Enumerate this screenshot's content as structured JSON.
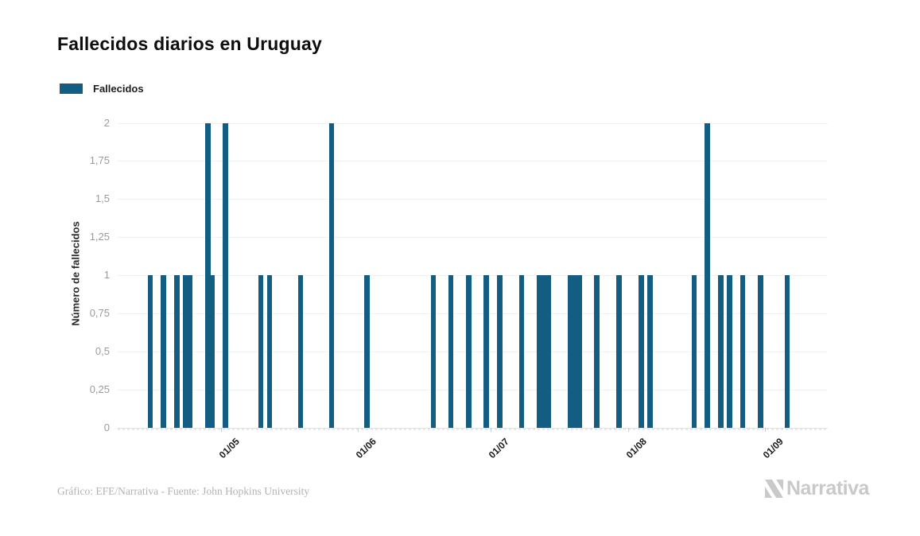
{
  "header": {
    "title": "Fallecidos diarios en Uruguay"
  },
  "legend": {
    "label": "Fallecidos"
  },
  "colors": {
    "bar": "#135c82",
    "grid": "#f1f1f1",
    "y_tick_label": "#9b9b9b",
    "x_tick_label": "#1a1a1a",
    "title": "#0e0e10",
    "credit": "#b3b3b3",
    "brand": "#c9c9c9"
  },
  "chart_data": {
    "type": "bar",
    "title": "Fallecidos diarios en Uruguay",
    "xlabel": "",
    "ylabel": "Número de fallecidos",
    "ylim": [
      0,
      2
    ],
    "grid": true,
    "legend_position": "top-left",
    "y_ticks": [
      "0",
      "0,25",
      "0,5",
      "0,75",
      "1",
      "1,25",
      "1,5",
      "1,75",
      "2"
    ],
    "x_ticks": [
      "01/05",
      "01/06",
      "01/07",
      "01/08",
      "01/09"
    ],
    "series": [
      {
        "name": "Fallecidos",
        "color": "#135c82",
        "points": [
          {
            "date": "15/04",
            "value": 1
          },
          {
            "date": "18/04",
            "value": 1
          },
          {
            "date": "21/04",
            "value": 1
          },
          {
            "date": "23/04",
            "value": 1
          },
          {
            "date": "24/04",
            "value": 1
          },
          {
            "date": "28/04",
            "value": 2
          },
          {
            "date": "29/04",
            "value": 1
          },
          {
            "date": "02/05",
            "value": 2
          },
          {
            "date": "10/05",
            "value": 1
          },
          {
            "date": "12/05",
            "value": 1
          },
          {
            "date": "19/05",
            "value": 1
          },
          {
            "date": "26/05",
            "value": 2
          },
          {
            "date": "03/06",
            "value": 1
          },
          {
            "date": "18/06",
            "value": 1
          },
          {
            "date": "22/06",
            "value": 1
          },
          {
            "date": "26/06",
            "value": 1
          },
          {
            "date": "30/06",
            "value": 1
          },
          {
            "date": "03/07",
            "value": 1
          },
          {
            "date": "08/07",
            "value": 1
          },
          {
            "date": "12/07",
            "value": 1
          },
          {
            "date": "13/07",
            "value": 1
          },
          {
            "date": "14/07",
            "value": 1
          },
          {
            "date": "19/07",
            "value": 1
          },
          {
            "date": "20/07",
            "value": 1
          },
          {
            "date": "21/07",
            "value": 1
          },
          {
            "date": "25/07",
            "value": 1
          },
          {
            "date": "30/07",
            "value": 1
          },
          {
            "date": "04/08",
            "value": 1
          },
          {
            "date": "06/08",
            "value": 1
          },
          {
            "date": "16/08",
            "value": 1
          },
          {
            "date": "19/08",
            "value": 2
          },
          {
            "date": "22/08",
            "value": 1
          },
          {
            "date": "24/08",
            "value": 1
          },
          {
            "date": "27/08",
            "value": 1
          },
          {
            "date": "31/08",
            "value": 1
          },
          {
            "date": "06/09",
            "value": 1
          }
        ]
      }
    ]
  },
  "footer": {
    "credit": "Gráfico: EFE/Narrativa - Fuente: John Hopkins University",
    "brand": "Narrativa"
  }
}
